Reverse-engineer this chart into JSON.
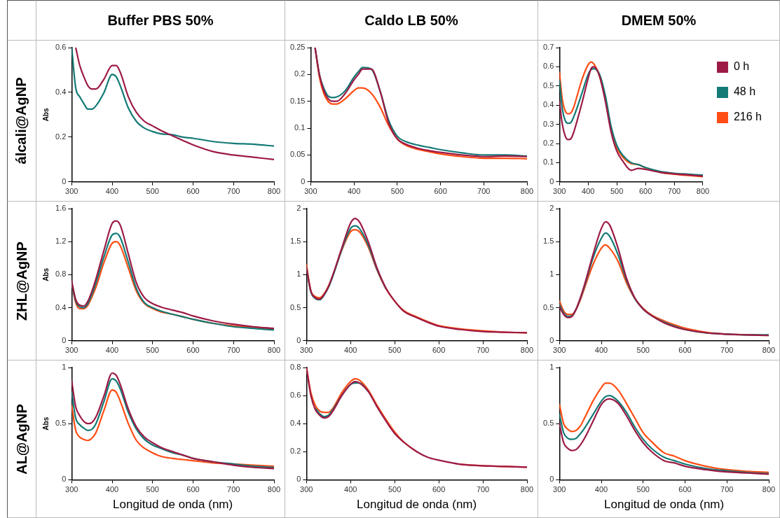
{
  "chart_data": [
    {
      "type": "line",
      "title": "Buffer PBS 50%",
      "ylabel": "Abs",
      "annotations": [
        "álcali@AgNP"
      ],
      "x": [
        300,
        310,
        320,
        330,
        340,
        350,
        360,
        380,
        400,
        410,
        420,
        440,
        460,
        480,
        500,
        520,
        550,
        575,
        600,
        650,
        700,
        750,
        800
      ],
      "xlim": [
        300,
        800
      ],
      "xticks": [
        300,
        400,
        500,
        600,
        700,
        800
      ],
      "ylim": [
        0,
        0.6
      ],
      "yticks": [
        0,
        0.2,
        0.4,
        0.6
      ],
      "grid": false,
      "marker": "none",
      "line_style": "solid",
      "series": [
        {
          "color": "#9c1a45",
          "values": [
            null,
            0.6,
            0.52,
            0.47,
            0.43,
            0.415,
            0.415,
            0.46,
            0.52,
            0.52,
            0.49,
            0.38,
            0.31,
            0.27,
            0.25,
            0.23,
            0.205,
            0.185,
            0.165,
            0.135,
            0.12,
            0.11,
            0.1
          ]
        },
        {
          "color": "#137a76",
          "values": [
            0.6,
            0.42,
            0.38,
            0.35,
            0.325,
            0.325,
            0.34,
            0.4,
            0.48,
            0.47,
            0.43,
            0.33,
            0.27,
            0.24,
            0.225,
            0.215,
            0.21,
            0.2,
            0.195,
            0.18,
            0.172,
            0.168,
            0.16
          ]
        }
      ]
    },
    {
      "type": "line",
      "title": "Caldo LB 50%",
      "x": [
        310,
        320,
        330,
        340,
        350,
        360,
        380,
        400,
        410,
        420,
        440,
        460,
        480,
        500,
        520,
        550,
        575,
        600,
        650,
        700,
        750,
        800
      ],
      "xlim": [
        300,
        800
      ],
      "xticks": [
        300,
        400,
        500,
        600,
        700,
        800
      ],
      "ylim": [
        0,
        0.25
      ],
      "yticks": [
        0,
        0.05,
        0.1,
        0.15,
        0.2,
        0.25
      ],
      "grid": false,
      "marker": "none",
      "line_style": "solid",
      "series": [
        {
          "color": "#9c1a45",
          "values": [
            0.25,
            0.2,
            0.17,
            0.155,
            0.15,
            0.15,
            0.165,
            0.19,
            0.2,
            0.21,
            0.21,
            0.17,
            0.11,
            0.08,
            0.07,
            0.062,
            0.058,
            0.055,
            0.05,
            0.047,
            0.048,
            0.047
          ]
        },
        {
          "color": "#137a76",
          "values": [
            0.25,
            0.2,
            0.175,
            0.16,
            0.157,
            0.158,
            0.17,
            0.195,
            0.205,
            0.213,
            0.21,
            0.17,
            0.115,
            0.085,
            0.075,
            0.068,
            0.064,
            0.06,
            0.054,
            0.05,
            0.05,
            0.048
          ]
        },
        {
          "color": "#ff4d14",
          "values": [
            0.25,
            0.195,
            0.165,
            0.15,
            0.145,
            0.145,
            0.155,
            0.17,
            0.175,
            0.175,
            0.165,
            0.14,
            0.105,
            0.08,
            0.068,
            0.06,
            0.056,
            0.052,
            0.047,
            0.044,
            0.044,
            0.043
          ]
        }
      ]
    },
    {
      "type": "line",
      "title": "DMEM 50%",
      "legend": "top right",
      "x": [
        300,
        310,
        320,
        330,
        340,
        350,
        360,
        380,
        400,
        410,
        420,
        440,
        460,
        480,
        500,
        520,
        550,
        575,
        600,
        650,
        700,
        750,
        800
      ],
      "xlim": [
        300,
        800
      ],
      "xticks": [
        300,
        400,
        500,
        600,
        700,
        800
      ],
      "ylim": [
        0,
        0.7
      ],
      "yticks": [
        0,
        0.1,
        0.2,
        0.3,
        0.4,
        0.5,
        0.6,
        0.7
      ],
      "grid": false,
      "marker": "none",
      "line_style": "solid",
      "series": [
        {
          "name": "0 h",
          "color": "#9c1a45",
          "values": [
            0.42,
            0.3,
            0.24,
            0.22,
            0.225,
            0.26,
            0.31,
            0.42,
            0.54,
            0.59,
            0.6,
            0.55,
            0.42,
            0.26,
            0.16,
            0.11,
            0.06,
            0.07,
            0.065,
            0.05,
            0.042,
            0.036,
            0.03
          ]
        },
        {
          "name": "48 h",
          "color": "#137a76",
          "values": [
            0.53,
            0.38,
            0.32,
            0.305,
            0.31,
            0.34,
            0.38,
            0.47,
            0.56,
            0.585,
            0.59,
            0.56,
            0.45,
            0.29,
            0.19,
            0.14,
            0.1,
            0.09,
            0.075,
            0.055,
            0.045,
            0.04,
            0.035
          ]
        },
        {
          "name": "216 h",
          "color": "#ff4d14",
          "values": [
            0.57,
            0.43,
            0.37,
            0.355,
            0.36,
            0.39,
            0.44,
            0.54,
            0.61,
            0.625,
            0.615,
            0.55,
            0.43,
            0.28,
            0.18,
            0.13,
            0.095,
            0.09,
            0.072,
            0.05,
            0.04,
            0.033,
            0.027
          ]
        }
      ]
    },
    {
      "type": "line",
      "ylabel": "Abs",
      "annotations": [
        "ZHL@AgNP"
      ],
      "x": [
        300,
        310,
        320,
        330,
        340,
        350,
        360,
        380,
        400,
        410,
        420,
        440,
        460,
        480,
        500,
        520,
        550,
        575,
        600,
        650,
        700,
        750,
        800
      ],
      "xlim": [
        300,
        800
      ],
      "xticks": [
        300,
        400,
        500,
        600,
        700,
        800
      ],
      "ylim": [
        0,
        1.6
      ],
      "yticks": [
        0,
        0.4,
        0.8,
        1.2,
        1.6
      ],
      "grid": false,
      "marker": "none",
      "line_style": "solid",
      "series": [
        {
          "color": "#9c1a45",
          "values": [
            0.72,
            0.5,
            0.43,
            0.42,
            0.48,
            0.6,
            0.75,
            1.1,
            1.42,
            1.45,
            1.4,
            1.05,
            0.7,
            0.52,
            0.45,
            0.41,
            0.37,
            0.34,
            0.3,
            0.24,
            0.2,
            0.17,
            0.15
          ]
        },
        {
          "color": "#137a76",
          "values": [
            0.7,
            0.48,
            0.41,
            0.4,
            0.45,
            0.56,
            0.7,
            1.02,
            1.28,
            1.3,
            1.25,
            0.95,
            0.63,
            0.46,
            0.4,
            0.36,
            0.32,
            0.29,
            0.26,
            0.21,
            0.17,
            0.15,
            0.13
          ]
        },
        {
          "color": "#ff4d14",
          "values": [
            0.7,
            0.46,
            0.39,
            0.39,
            0.43,
            0.53,
            0.65,
            0.95,
            1.18,
            1.2,
            1.15,
            0.88,
            0.6,
            0.45,
            0.39,
            0.35,
            0.32,
            0.29,
            0.26,
            0.21,
            0.18,
            0.16,
            0.14
          ]
        }
      ]
    },
    {
      "type": "line",
      "x": [
        300,
        310,
        320,
        330,
        340,
        350,
        360,
        380,
        400,
        410,
        420,
        440,
        460,
        480,
        500,
        520,
        550,
        575,
        600,
        650,
        700,
        750,
        800
      ],
      "xlim": [
        300,
        800
      ],
      "xticks": [
        300,
        400,
        500,
        600,
        700,
        800
      ],
      "ylim": [
        0,
        2
      ],
      "yticks": [
        0,
        0.5,
        1,
        1.5,
        2
      ],
      "grid": false,
      "marker": "none",
      "line_style": "solid",
      "series": [
        {
          "color": "#9c1a45",
          "values": [
            1.1,
            0.75,
            0.65,
            0.63,
            0.7,
            0.82,
            1.0,
            1.4,
            1.78,
            1.85,
            1.8,
            1.5,
            1.1,
            0.8,
            0.6,
            0.45,
            0.35,
            0.28,
            0.22,
            0.17,
            0.14,
            0.13,
            0.12
          ]
        },
        {
          "color": "#137a76",
          "values": [
            1.1,
            0.74,
            0.64,
            0.62,
            0.69,
            0.81,
            0.98,
            1.38,
            1.7,
            1.74,
            1.7,
            1.45,
            1.08,
            0.79,
            null,
            null,
            null,
            null,
            null,
            null,
            null,
            null,
            null
          ]
        },
        {
          "color": "#ff4d14",
          "values": [
            1.15,
            0.76,
            0.67,
            0.65,
            0.71,
            0.83,
            0.99,
            1.37,
            1.65,
            1.68,
            1.65,
            1.42,
            1.07,
            0.79,
            0.6,
            0.46,
            0.36,
            0.29,
            0.23,
            0.18,
            0.15,
            0.13,
            0.12
          ]
        }
      ]
    },
    {
      "type": "line",
      "x": [
        300,
        310,
        320,
        330,
        340,
        350,
        360,
        380,
        400,
        410,
        420,
        440,
        460,
        480,
        500,
        520,
        550,
        575,
        600,
        650,
        700,
        750,
        800
      ],
      "xlim": [
        300,
        800
      ],
      "xticks": [
        300,
        400,
        500,
        600,
        700,
        800
      ],
      "ylim": [
        0,
        2
      ],
      "yticks": [
        0,
        0.5,
        1,
        1.5,
        2
      ],
      "grid": false,
      "marker": "none",
      "line_style": "solid",
      "series": [
        {
          "color": "#9c1a45",
          "values": [
            0.52,
            0.4,
            0.35,
            0.37,
            0.48,
            0.65,
            0.85,
            1.3,
            1.7,
            1.8,
            1.75,
            1.4,
            0.95,
            0.65,
            0.48,
            0.38,
            0.27,
            0.21,
            0.17,
            0.12,
            0.1,
            0.09,
            0.08
          ]
        },
        {
          "color": "#137a76",
          "values": [
            0.55,
            0.42,
            0.37,
            0.38,
            0.48,
            0.64,
            0.83,
            1.25,
            1.55,
            1.63,
            1.58,
            1.3,
            0.92,
            0.64,
            0.48,
            0.38,
            0.28,
            0.22,
            0.17,
            0.12,
            0.1,
            0.09,
            0.09
          ]
        },
        {
          "color": "#ff4d14",
          "values": [
            0.6,
            0.45,
            0.4,
            0.4,
            0.48,
            0.62,
            0.8,
            1.15,
            1.4,
            1.45,
            1.4,
            1.2,
            0.88,
            0.64,
            0.49,
            0.39,
            0.3,
            0.24,
            0.19,
            0.13,
            0.1,
            0.09,
            0.08
          ]
        }
      ]
    },
    {
      "type": "line",
      "ylabel": "Abs",
      "xlabel": "Longitud de onda (nm)",
      "annotations": [
        "AL@AgNP"
      ],
      "x": [
        300,
        310,
        320,
        330,
        340,
        350,
        360,
        380,
        400,
        410,
        420,
        440,
        460,
        480,
        500,
        520,
        550,
        575,
        600,
        650,
        700,
        750,
        800
      ],
      "xlim": [
        300,
        800
      ],
      "xticks": [
        300,
        400,
        500,
        600,
        700,
        800
      ],
      "ylim": [
        0,
        1
      ],
      "yticks": [
        0,
        0.5,
        1
      ],
      "grid": false,
      "marker": "none",
      "line_style": "solid",
      "series": [
        {
          "color": "#9c1a45",
          "values": [
            0.88,
            0.65,
            0.57,
            0.52,
            0.5,
            0.51,
            0.56,
            0.75,
            0.95,
            0.93,
            0.85,
            0.63,
            0.47,
            0.38,
            0.33,
            0.29,
            0.25,
            0.22,
            0.19,
            0.16,
            0.13,
            0.11,
            0.1
          ]
        },
        {
          "color": "#137a76",
          "values": [
            0.78,
            0.55,
            0.49,
            0.46,
            0.44,
            0.45,
            0.5,
            0.7,
            0.9,
            0.88,
            0.81,
            0.6,
            0.45,
            0.36,
            0.31,
            0.28,
            0.24,
            0.22,
            0.19,
            0.16,
            0.14,
            0.12,
            0.11
          ]
        },
        {
          "color": "#ff4d14",
          "values": [
            0.66,
            0.44,
            0.38,
            0.36,
            0.35,
            0.37,
            0.42,
            0.62,
            0.8,
            0.78,
            0.7,
            0.5,
            0.35,
            0.28,
            0.24,
            0.21,
            0.19,
            0.18,
            0.17,
            0.15,
            0.14,
            0.13,
            0.12
          ]
        }
      ]
    },
    {
      "type": "line",
      "xlabel": "Longitud de onda (nm)",
      "x": [
        300,
        310,
        320,
        330,
        340,
        350,
        360,
        380,
        400,
        410,
        420,
        440,
        460,
        480,
        500,
        520,
        550,
        575,
        600,
        650,
        700,
        750,
        800
      ],
      "xlim": [
        300,
        800
      ],
      "xticks": [
        300,
        400,
        500,
        600,
        700,
        800
      ],
      "ylim": [
        0,
        0.8
      ],
      "yticks": [
        0,
        0.2,
        0.4,
        0.6,
        0.8
      ],
      "grid": false,
      "marker": "none",
      "line_style": "solid",
      "series": [
        {
          "color": "#9c1a45",
          "values": [
            0.8,
            0.6,
            0.5,
            0.46,
            0.44,
            0.45,
            0.49,
            0.6,
            0.68,
            0.7,
            0.69,
            0.63,
            0.52,
            0.42,
            0.33,
            0.27,
            0.2,
            0.16,
            0.14,
            0.11,
            0.1,
            0.095,
            0.09
          ]
        },
        {
          "color": "#137a76",
          "values": [
            null,
            null,
            0.51,
            0.47,
            0.45,
            0.46,
            0.5,
            0.6,
            0.68,
            0.69,
            0.69,
            0.63,
            null,
            null,
            null,
            null,
            null,
            null,
            null,
            null,
            null,
            null,
            null
          ]
        },
        {
          "color": "#ff4d14",
          "values": [
            0.8,
            0.62,
            0.53,
            0.49,
            0.48,
            0.48,
            0.51,
            0.62,
            0.7,
            0.72,
            0.71,
            0.64,
            0.53,
            0.43,
            0.34,
            0.27,
            0.2,
            null,
            null,
            0.11,
            0.1,
            0.095,
            0.09
          ]
        }
      ]
    },
    {
      "type": "line",
      "xlabel": "Longitud de onda (nm)",
      "x": [
        300,
        310,
        320,
        330,
        340,
        350,
        360,
        380,
        400,
        410,
        420,
        440,
        460,
        480,
        500,
        520,
        550,
        575,
        600,
        650,
        700,
        750,
        800
      ],
      "xlim": [
        300,
        800
      ],
      "xticks": [
        300,
        400,
        500,
        600,
        700,
        800
      ],
      "ylim": [
        0,
        1
      ],
      "yticks": [
        0,
        0.5,
        1
      ],
      "grid": false,
      "marker": "none",
      "line_style": "solid",
      "series": [
        {
          "color": "#9c1a45",
          "values": [
            0.5,
            0.33,
            0.28,
            0.26,
            0.27,
            0.31,
            0.37,
            0.52,
            0.67,
            0.71,
            0.72,
            0.68,
            0.57,
            0.44,
            0.33,
            0.25,
            0.17,
            0.15,
            0.12,
            0.09,
            0.07,
            0.06,
            0.05
          ]
        },
        {
          "color": "#137a76",
          "values": [
            0.58,
            0.42,
            0.37,
            0.36,
            0.37,
            0.41,
            0.46,
            0.58,
            0.7,
            0.74,
            0.75,
            0.7,
            0.6,
            0.47,
            0.36,
            0.28,
            0.2,
            0.17,
            0.14,
            0.1,
            0.08,
            0.065,
            0.055
          ]
        },
        {
          "color": "#ff4d14",
          "values": [
            0.67,
            0.5,
            0.45,
            0.43,
            0.44,
            0.48,
            0.55,
            0.7,
            0.82,
            0.86,
            0.86,
            0.8,
            0.68,
            0.55,
            0.42,
            0.34,
            0.24,
            0.21,
            0.17,
            0.12,
            0.09,
            0.075,
            0.065
          ]
        }
      ]
    }
  ]
}
